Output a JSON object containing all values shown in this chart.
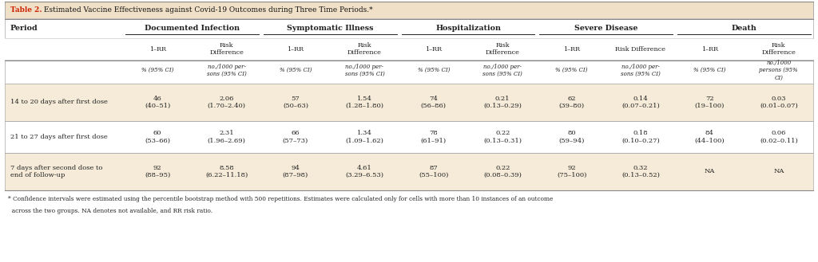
{
  "title_red": "Table 2.",
  "title_black": " Estimated Vaccine Effectiveness against Covid-19 Outcomes during Three Time Periods.*",
  "col_groups": [
    "Documented Infection",
    "Symptomatic Illness",
    "Hospitalization",
    "Severe Disease",
    "Death"
  ],
  "col_subheaders_row1": [
    "1–RR",
    "Risk\nDifference",
    "1–RR",
    "Risk\nDifference",
    "1–RR",
    "Risk\nDifference",
    "1–RR",
    "Risk Difference",
    "1–RR",
    "Risk\nDifference"
  ],
  "col_subheaders_row2": [
    "% (95% CI)",
    "no./1000 per-\nsons (95% CI)",
    "% (95% CI)",
    "no./1000 per-\nsons (95% CI)",
    "% (95% CI)",
    "no./1000 per-\nsons (95% CI)",
    "% (95% CI)",
    "no./1000 per-\nsons (95% CI)",
    "% (95% CI)",
    "no./1000\npersons (95%\nCI)"
  ],
  "rows": [
    {
      "period": "14 to 20 days after first dose",
      "data": [
        "46\n(40–51)",
        "2.06\n(1.70–2.40)",
        "57\n(50–63)",
        "1.54\n(1.28–1.80)",
        "74\n(56–86)",
        "0.21\n(0.13–0.29)",
        "62\n(39–80)",
        "0.14\n(0.07–0.21)",
        "72\n(19–100)",
        "0.03\n(0.01–0.07)"
      ],
      "bg": "#f5ebd8"
    },
    {
      "period": "21 to 27 days after first dose",
      "data": [
        "60\n(53–66)",
        "2.31\n(1.96–2.69)",
        "66\n(57–73)",
        "1.34\n(1.09–1.62)",
        "78\n(61–91)",
        "0.22\n(0.13–0.31)",
        "80\n(59–94)",
        "0.18\n(0.10–0.27)",
        "84\n(44–100)",
        "0.06\n(0.02–0.11)"
      ],
      "bg": "#ffffff"
    },
    {
      "period": "7 days after second dose to\nend of follow-up",
      "data": [
        "92\n(88–95)",
        "8.58\n(6.22–11.18)",
        "94\n(87–98)",
        "4.61\n(3.29–6.53)",
        "87\n(55–100)",
        "0.22\n(0.08–0.39)",
        "92\n(75–100)",
        "0.32\n(0.13–0.52)",
        "NA",
        "NA"
      ],
      "bg": "#f5ebd8"
    }
  ],
  "footnote_line1": "* Confidence intervals were estimated using the percentile bootstrap method with 500 repetitions. Estimates were calculated only for cells with more than 10 instances of an outcome",
  "footnote_line2": "  across the two groups. NA denotes not available, and RR risk ratio.",
  "outer_bg": "#ffffff",
  "title_bg": "#f0e0c8",
  "header_bg": "#ffffff",
  "border_color": "#aaaaaa",
  "red_color": "#cc2200",
  "text_color": "#222222",
  "fig_width": 10.24,
  "fig_height": 3.29,
  "dpi": 100
}
